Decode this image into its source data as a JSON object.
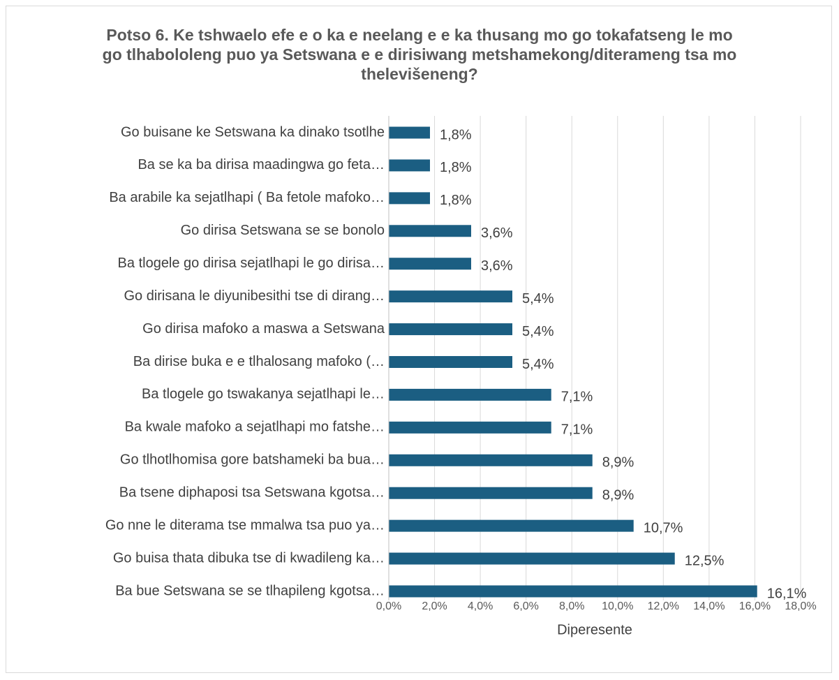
{
  "chart_data": {
    "type": "barh",
    "title": "Potso 6. Ke tshwaelo efe e o ka e neelang e e ka thusang mo go tokafatseng le  mo go tlhabololeng puo ya Setswana e e dirisiwang metshamekong/diterameng tsa mo thelevišeneng?",
    "categories": [
      "Go buisane ke Setswana ka dinako tsotlhe",
      "Ba se ka ba dirisa maadingwa go feta…",
      "Ba arabile ka sejatlhapi ( Ba fetole mafoko…",
      "Go dirisa Setswana se se bonolo",
      "Ba tlogele go dirisa sejatlhapi le go dirisa…",
      "Go dirisana le diyunibesithi tse di dirang…",
      "Go dirisa mafoko a maswa a Setswana",
      "Ba dirise buka e e tlhalosang mafoko (…",
      "Ba tlogele go tswakanya sejatlhapi le…",
      "Ba kwale mafoko a sejatlhapi mo fatshe…",
      "Go tlhotlhomisa gore batshameki ba bua…",
      "Ba tsene diphaposi tsa Setswana kgotsa…",
      "Go nne le diterama tse mmalwa tsa puo ya…",
      "Go buisa thata dibuka tse di kwadileng ka…",
      "Ba bue Setswana se se tlhapileng kgotsa…"
    ],
    "values": [
      1.8,
      1.8,
      1.8,
      3.6,
      3.6,
      5.4,
      5.4,
      5.4,
      7.1,
      7.1,
      8.9,
      8.9,
      10.7,
      12.5,
      16.1
    ],
    "value_labels": [
      "1,8%",
      "1,8%",
      "1,8%",
      "3,6%",
      "3,6%",
      "5,4%",
      "5,4%",
      "5,4%",
      "7,1%",
      "7,1%",
      "8,9%",
      "8,9%",
      "10,7%",
      "12,5%",
      "16,1%"
    ],
    "color": "#1b5e82",
    "xlabel": "Diperesente",
    "xlim": [
      0,
      18
    ],
    "xticks": [
      {
        "value": 0,
        "label": "0,0%"
      },
      {
        "value": 2,
        "label": "2,0%"
      },
      {
        "value": 4,
        "label": "4,0%"
      },
      {
        "value": 6,
        "label": "6,0%"
      },
      {
        "value": 8,
        "label": "8,0%"
      },
      {
        "value": 10,
        "label": "10,0%"
      },
      {
        "value": 12,
        "label": "12,0%"
      },
      {
        "value": 14,
        "label": "14,0%"
      },
      {
        "value": 16,
        "label": "16,0%"
      },
      {
        "value": 18,
        "label": "18,0%"
      }
    ],
    "grid": true
  }
}
